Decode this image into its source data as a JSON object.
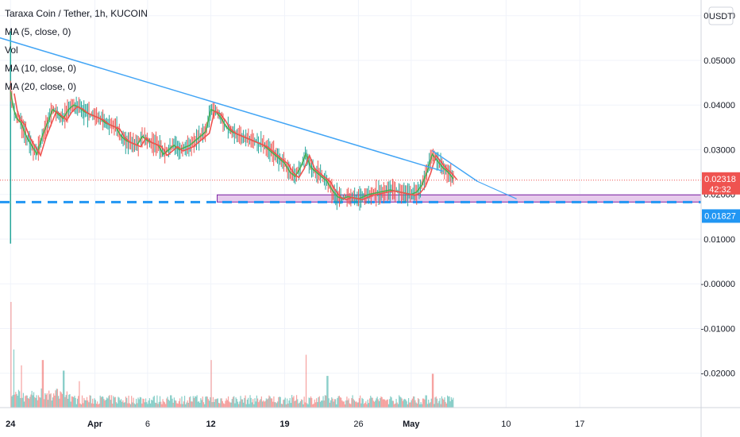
{
  "header": {
    "title": "Taraxa Coin / Tether, 1h, KUCOIN",
    "indicators": [
      "MA (5, close, 0)",
      "Vol",
      "MA (10, close, 0)",
      "MA (20, close, 0)"
    ],
    "currency_badge": "USDT"
  },
  "price_badges": {
    "last_price": "0.02318",
    "countdown": "42:32",
    "line_level": "0.01827"
  },
  "colors": {
    "last_price": "#ef5350",
    "trendline": "#42a5f5",
    "dashed_line": "#2196f3",
    "zone_fill": "#e1bee7",
    "zone_border": "#7b1fa2",
    "candles_up": "#26a69a",
    "ma5": "#4caf50",
    "ma10": "#ef5350"
  },
  "chart_data": {
    "type": "line",
    "title": "Taraxa Coin / Tether, 1h, KUCOIN",
    "y_axis": {
      "ticks": [
        0.06,
        0.05,
        0.04,
        0.03,
        0.02,
        0.01,
        0.0,
        -0.01,
        -0.02
      ],
      "tick_labels": [
        "0.06000",
        "0.05000",
        "0.04000",
        "0.03000",
        "0.02000",
        "0.01000",
        "-0.00000",
        "-0.01000",
        "-0.02000"
      ],
      "range": [
        -0.0277,
        0.0635
      ]
    },
    "x_axis": {
      "tick_labels": [
        {
          "label": "24",
          "bold": true,
          "day": 0
        },
        {
          "label": "Apr",
          "bold": true,
          "day": 8
        },
        {
          "label": "6",
          "bold": false,
          "day": 13
        },
        {
          "label": "12",
          "bold": true,
          "day": 19
        },
        {
          "label": "19",
          "bold": true,
          "day": 26
        },
        {
          "label": "26",
          "bold": false,
          "day": 33
        },
        {
          "label": "May",
          "bold": true,
          "day": 38
        },
        {
          "label": "10",
          "bold": false,
          "day": 47
        },
        {
          "label": "17",
          "bold": false,
          "day": 54
        }
      ],
      "range_days": [
        -1.0,
        65.5
      ]
    },
    "price_series": {
      "name": "MA (5, close, 0)",
      "points": [
        [
          0.0,
          0.043
        ],
        [
          0.3,
          0.039
        ],
        [
          0.6,
          0.037
        ],
        [
          1.0,
          0.036
        ],
        [
          1.5,
          0.033
        ],
        [
          2.0,
          0.031
        ],
        [
          2.5,
          0.029
        ],
        [
          3.0,
          0.033
        ],
        [
          3.5,
          0.036
        ],
        [
          4.0,
          0.039
        ],
        [
          4.5,
          0.038
        ],
        [
          5.0,
          0.037
        ],
        [
          5.5,
          0.039
        ],
        [
          6.0,
          0.04
        ],
        [
          6.5,
          0.0395
        ],
        [
          7.0,
          0.0385
        ],
        [
          7.5,
          0.038
        ],
        [
          8.0,
          0.0375
        ],
        [
          8.5,
          0.037
        ],
        [
          9.0,
          0.036
        ],
        [
          10.0,
          0.035
        ],
        [
          10.5,
          0.033
        ],
        [
          11.0,
          0.032
        ],
        [
          12.0,
          0.031
        ],
        [
          12.5,
          0.033
        ],
        [
          13.0,
          0.032
        ],
        [
          14.0,
          0.031
        ],
        [
          14.5,
          0.029
        ],
        [
          15.0,
          0.03
        ],
        [
          15.5,
          0.031
        ],
        [
          16.0,
          0.03
        ],
        [
          17.0,
          0.031
        ],
        [
          17.5,
          0.032
        ],
        [
          18.0,
          0.033
        ],
        [
          18.5,
          0.034
        ],
        [
          19.0,
          0.039
        ],
        [
          19.5,
          0.0385
        ],
        [
          20.0,
          0.037
        ],
        [
          20.5,
          0.035
        ],
        [
          21.0,
          0.034
        ],
        [
          22.0,
          0.033
        ],
        [
          23.0,
          0.032
        ],
        [
          24.0,
          0.031
        ],
        [
          25.0,
          0.029
        ],
        [
          26.0,
          0.027
        ],
        [
          26.5,
          0.025
        ],
        [
          27.0,
          0.024
        ],
        [
          27.5,
          0.026
        ],
        [
          28.0,
          0.029
        ],
        [
          28.5,
          0.026
        ],
        [
          29.0,
          0.025
        ],
        [
          29.5,
          0.024
        ],
        [
          30.0,
          0.023
        ],
        [
          30.5,
          0.021
        ],
        [
          31.0,
          0.0195
        ],
        [
          31.5,
          0.019
        ],
        [
          32.0,
          0.0195
        ],
        [
          33.0,
          0.019
        ],
        [
          34.0,
          0.02
        ],
        [
          35.0,
          0.0205
        ],
        [
          36.0,
          0.021
        ],
        [
          37.0,
          0.0205
        ],
        [
          38.0,
          0.02
        ],
        [
          38.5,
          0.0205
        ],
        [
          39.0,
          0.022
        ],
        [
          39.5,
          0.025
        ],
        [
          40.0,
          0.029
        ],
        [
          40.5,
          0.0275
        ],
        [
          41.0,
          0.026
        ],
        [
          41.5,
          0.025
        ],
        [
          42.0,
          0.0235
        ]
      ]
    },
    "trendlines": [
      {
        "name": "descending-trendline",
        "from": [
          -5.9,
          0.0585
        ],
        "to": [
          41.0,
          0.0252
        ]
      },
      {
        "name": "short-trendline",
        "from": [
          40.0,
          0.0298
        ],
        "to": [
          44.3,
          0.0229
        ]
      }
    ],
    "horizontal_line": {
      "value": 0.01827,
      "style": "dashed"
    },
    "zone": {
      "from_day": 19.6,
      "to_day": 65.5,
      "low": 0.0183,
      "high": 0.0199
    },
    "last_price": 0.02318,
    "volume": {
      "name": "Vol",
      "note": "histogram in lower pane, spikes near 24, 12, 21 and May",
      "spikes": [
        [
          0.0,
          1.0
        ],
        [
          0.3,
          0.55
        ],
        [
          1.0,
          0.4
        ],
        [
          3.0,
          0.45
        ],
        [
          5.0,
          0.35
        ],
        [
          6.5,
          0.25
        ],
        [
          19.0,
          0.45
        ],
        [
          28.0,
          0.5
        ],
        [
          30.0,
          0.3
        ],
        [
          40.0,
          0.32
        ]
      ]
    }
  }
}
